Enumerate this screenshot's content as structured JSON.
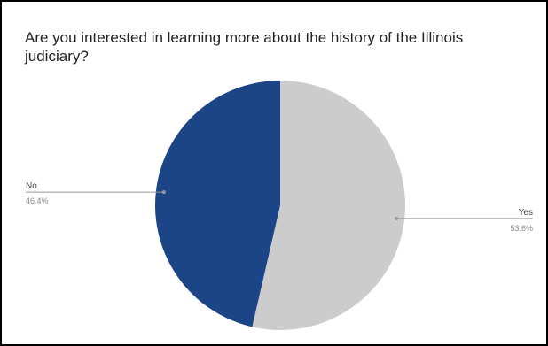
{
  "chart_data": {
    "type": "pie",
    "title": "Are you interested in learning more about the history of the Illinois judiciary?",
    "slices": [
      {
        "label": "Yes",
        "value": 53.6,
        "pct_label": "53.6%",
        "color": "#cccccc"
      },
      {
        "label": "No",
        "value": 46.4,
        "pct_label": "46.4%",
        "color": "#1c4587"
      }
    ],
    "start": "12 o'clock",
    "direction": "clockwise",
    "legend": "callout labels beside slices"
  }
}
